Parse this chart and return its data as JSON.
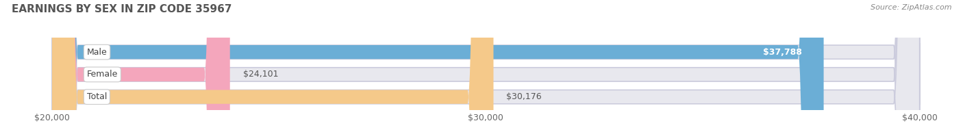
{
  "title": "EARNINGS BY SEX IN ZIP CODE 35967",
  "source": "Source: ZipAtlas.com",
  "categories": [
    "Male",
    "Female",
    "Total"
  ],
  "values": [
    37788,
    24101,
    30176
  ],
  "bar_colors": [
    "#6baed6",
    "#f4a6bc",
    "#f5c98a"
  ],
  "bar_labels": [
    "$37,788",
    "$24,101",
    "$30,176"
  ],
  "label_inside": [
    true,
    false,
    false
  ],
  "xmin": 20000,
  "xmax": 40000,
  "xticks": [
    20000,
    30000,
    40000
  ],
  "xticklabels": [
    "$20,000",
    "$30,000",
    "$40,000"
  ],
  "background_color": "#ffffff",
  "bar_track_color": "#e8e8ee",
  "bar_height": 0.62,
  "title_fontsize": 11,
  "label_fontsize": 9,
  "tick_fontsize": 9
}
